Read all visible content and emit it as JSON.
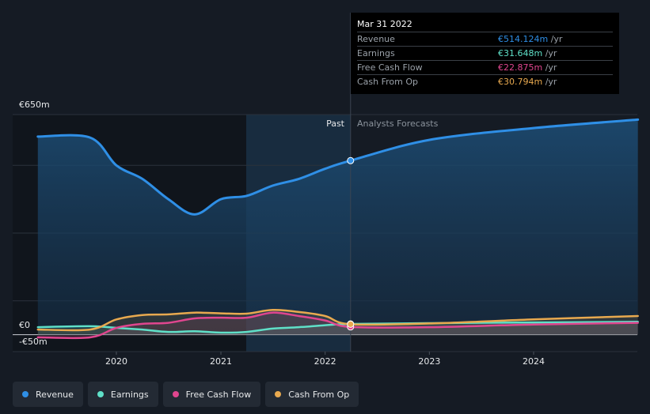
{
  "chart_data": {
    "type": "line",
    "y_axis": {
      "top_label": "€650m",
      "zero_label": "€0",
      "bottom_label": "-€50m",
      "ylim": [
        -50,
        650
      ]
    },
    "x_ticks": [
      "2020",
      "2021",
      "2022",
      "2023",
      "2024"
    ],
    "past_label": "Past",
    "forecast_label": "Analysts Forecasts",
    "series": [
      {
        "name": "Revenue",
        "color": "#2f8fe6",
        "x": [
          "2019-04-01",
          "2019-10-01",
          "2020-01-01",
          "2020-04-01",
          "2020-07-01",
          "2020-10-01",
          "2021-01-01",
          "2021-04-01",
          "2021-07-01",
          "2021-10-01",
          "2022-01-01",
          "2022-03-31",
          "2022-12-31",
          "2023-12-31",
          "2024-12-31"
        ],
        "y": [
          585,
          582,
          500,
          460,
          400,
          355,
          400,
          410,
          440,
          460,
          490,
          514,
          575,
          610,
          635
        ]
      },
      {
        "name": "Earnings",
        "color": "#5fe0c8",
        "x": [
          "2019-04-01",
          "2019-10-01",
          "2020-01-01",
          "2020-04-01",
          "2020-07-01",
          "2020-10-01",
          "2021-01-01",
          "2021-04-01",
          "2021-07-01",
          "2021-10-01",
          "2022-01-01",
          "2022-03-31",
          "2022-12-31",
          "2023-12-31",
          "2024-12-31"
        ],
        "y": [
          22,
          25,
          20,
          15,
          8,
          10,
          6,
          8,
          18,
          22,
          28,
          31.6,
          34,
          36,
          38
        ]
      },
      {
        "name": "Free Cash Flow",
        "color": "#e0468f",
        "x": [
          "2019-04-01",
          "2019-10-01",
          "2020-01-01",
          "2020-04-01",
          "2020-07-01",
          "2020-10-01",
          "2021-01-01",
          "2021-04-01",
          "2021-07-01",
          "2021-10-01",
          "2022-01-01",
          "2022-03-31",
          "2022-12-31",
          "2023-12-31",
          "2024-12-31"
        ],
        "y": [
          -8,
          -8,
          20,
          32,
          35,
          48,
          50,
          50,
          65,
          55,
          42,
          22.9,
          22,
          30,
          35
        ]
      },
      {
        "name": "Cash From Op",
        "color": "#e8a94f",
        "x": [
          "2019-04-01",
          "2019-10-01",
          "2020-01-01",
          "2020-04-01",
          "2020-07-01",
          "2020-10-01",
          "2021-01-01",
          "2021-04-01",
          "2021-07-01",
          "2021-10-01",
          "2022-01-01",
          "2022-03-31",
          "2022-12-31",
          "2023-12-31",
          "2024-12-31"
        ],
        "y": [
          15,
          15,
          45,
          58,
          60,
          65,
          63,
          62,
          73,
          67,
          55,
          30.8,
          33,
          45,
          55
        ]
      }
    ]
  },
  "tooltip": {
    "date": "Mar 31 2022",
    "rows": [
      {
        "name": "Revenue",
        "value": "€514.124m",
        "unit": "/yr",
        "color": "#2f8fe6"
      },
      {
        "name": "Earnings",
        "value": "€31.648m",
        "unit": "/yr",
        "color": "#5fe0c8"
      },
      {
        "name": "Free Cash Flow",
        "value": "€22.875m",
        "unit": "/yr",
        "color": "#e0468f"
      },
      {
        "name": "Cash From Op",
        "value": "€30.794m",
        "unit": "/yr",
        "color": "#e8a94f"
      }
    ]
  },
  "legend": [
    {
      "label": "Revenue",
      "color": "#2f8fe6"
    },
    {
      "label": "Earnings",
      "color": "#5fe0c8"
    },
    {
      "label": "Free Cash Flow",
      "color": "#e0468f"
    },
    {
      "label": "Cash From Op",
      "color": "#e8a94f"
    }
  ]
}
